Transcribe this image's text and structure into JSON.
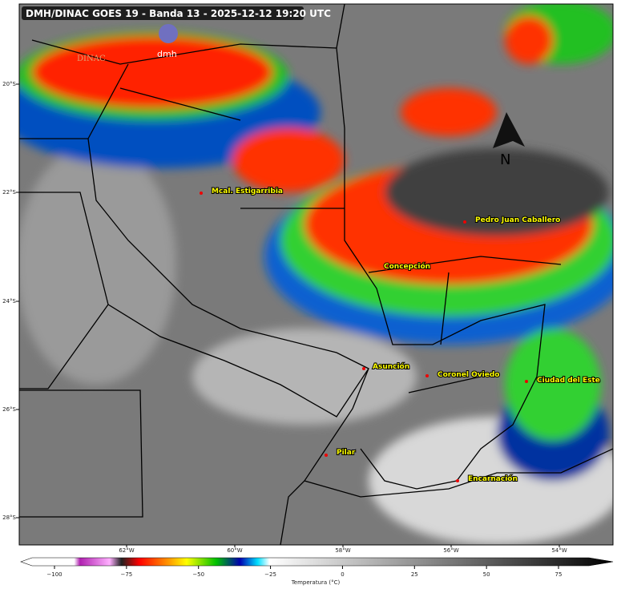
{
  "header": {
    "title": "DMH/DINAC GOES 19 - Banda 13 - 2025-12-12 19:20 UTC",
    "logo_left": "DINAC",
    "logo_right": "dmh",
    "north": "N"
  },
  "map": {
    "lat_labels": [
      "20°S",
      "22°S",
      "24°S",
      "26°S",
      "28°S"
    ],
    "lon_labels": [
      "62°W",
      "60°W",
      "58°W",
      "56°W",
      "54°W"
    ],
    "cities": [
      "Mcal. Estigarribia",
      "Pedro Juan Caballero",
      "Concepción",
      "Asunción",
      "Coronel Oviedo",
      "Ciudad del Este",
      "Pilar",
      "Encarnación"
    ]
  },
  "colorbar": {
    "label": "Temperatura (°C)",
    "ticks": [
      {
        "value": -100,
        "label": "−100"
      },
      {
        "value": -75,
        "label": "−75"
      },
      {
        "value": -50,
        "label": "−50"
      },
      {
        "value": -25,
        "label": "−25"
      },
      0,
      25,
      50,
      75
    ]
  }
}
